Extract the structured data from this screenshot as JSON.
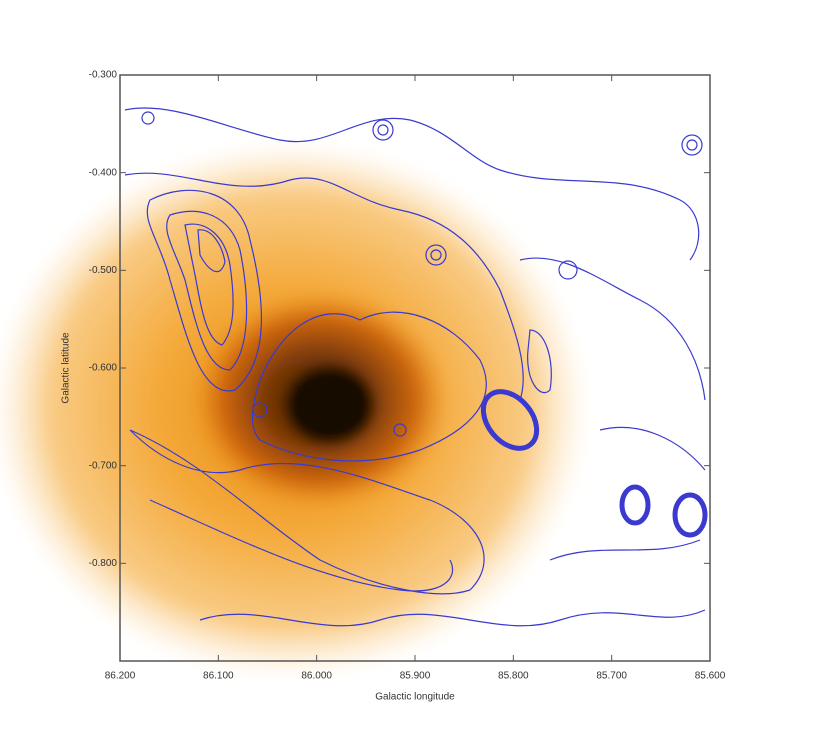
{
  "chart_data": {
    "type": "image",
    "xlabel": "Galactic longitude",
    "ylabel": "Galactic latitude",
    "xlim": [
      86.2,
      85.6
    ],
    "ylim": [
      -0.9,
      -0.3
    ],
    "xticks": [
      {
        "value": 86.2,
        "label": "86.200"
      },
      {
        "value": 86.1,
        "label": "86.100"
      },
      {
        "value": 86.0,
        "label": "86.000"
      },
      {
        "value": 85.9,
        "label": "85.900"
      },
      {
        "value": 85.8,
        "label": "85.800"
      },
      {
        "value": 85.7,
        "label": "85.700"
      },
      {
        "value": 85.6,
        "label": "85.600"
      }
    ],
    "yticks": [
      {
        "value": -0.3,
        "label": "-0.300"
      },
      {
        "value": -0.4,
        "label": "-0.400"
      },
      {
        "value": -0.5,
        "label": "-0.500"
      },
      {
        "value": -0.6,
        "label": "-0.600"
      },
      {
        "value": -0.7,
        "label": "-0.700"
      },
      {
        "value": -0.8,
        "label": "-0.800"
      }
    ],
    "contour_color": "#3a3ad0"
  }
}
